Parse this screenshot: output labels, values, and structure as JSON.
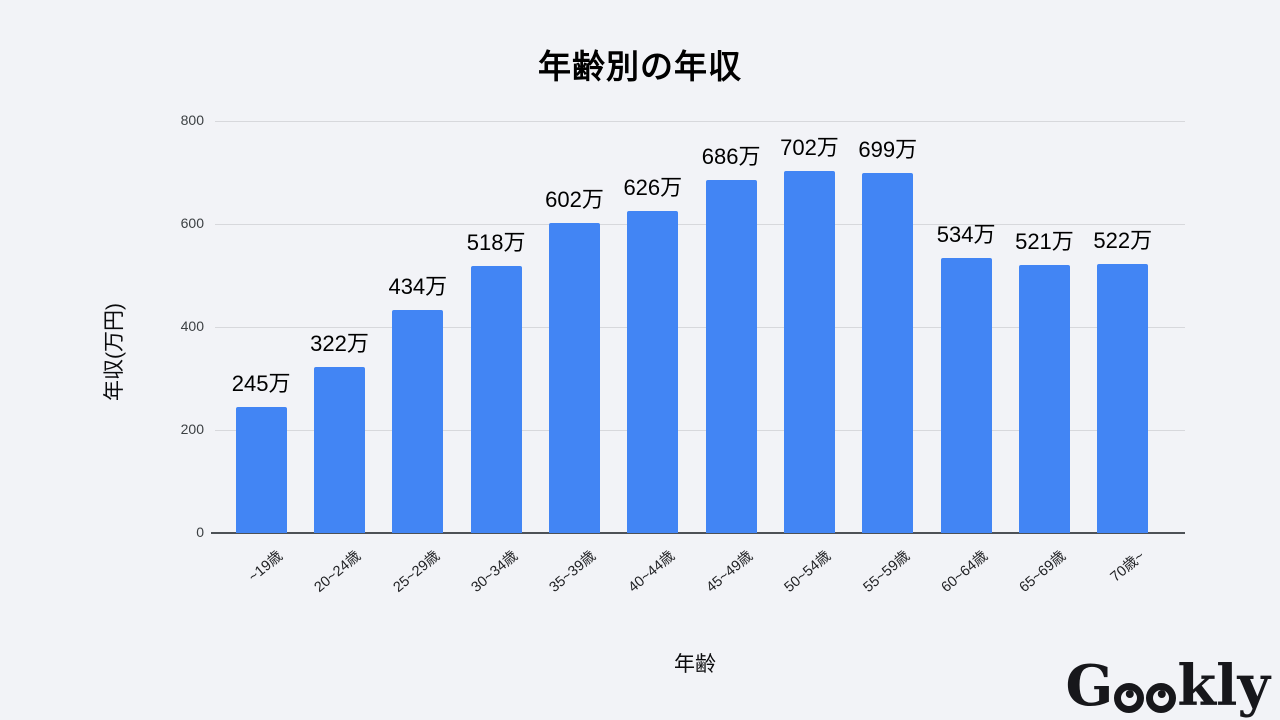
{
  "page": {
    "background": "#f2f3f7"
  },
  "chart_data": {
    "type": "bar",
    "title": "年齢別の年収",
    "xlabel": "年齢",
    "ylabel": "年収(万円)",
    "categories": [
      "~19歳",
      "20~24歳",
      "25~29歳",
      "30~34歳",
      "35~39歳",
      "40~44歳",
      "45~49歳",
      "50~54歳",
      "55~59歳",
      "60~64歳",
      "65~69歳",
      "70歳~"
    ],
    "values": [
      245,
      322,
      434,
      518,
      602,
      626,
      686,
      702,
      699,
      534,
      521,
      522
    ],
    "bar_labels": [
      "245万",
      "322万",
      "434万",
      "518万",
      "602万",
      "626万",
      "686万",
      "702万",
      "699万",
      "534万",
      "521万",
      "522万"
    ],
    "ylim": [
      0,
      800
    ],
    "yticks": [
      0,
      200,
      400,
      600,
      800
    ],
    "grid": "on",
    "legend_position": "none",
    "bar_color": "#4285f4",
    "grid_color": "#d7d8dc",
    "axis_color": "#4d5156",
    "background_color": "#f2f3f7"
  },
  "branding": {
    "brand": "Geekly",
    "logo_g": "G",
    "logo_kly": "kly"
  }
}
